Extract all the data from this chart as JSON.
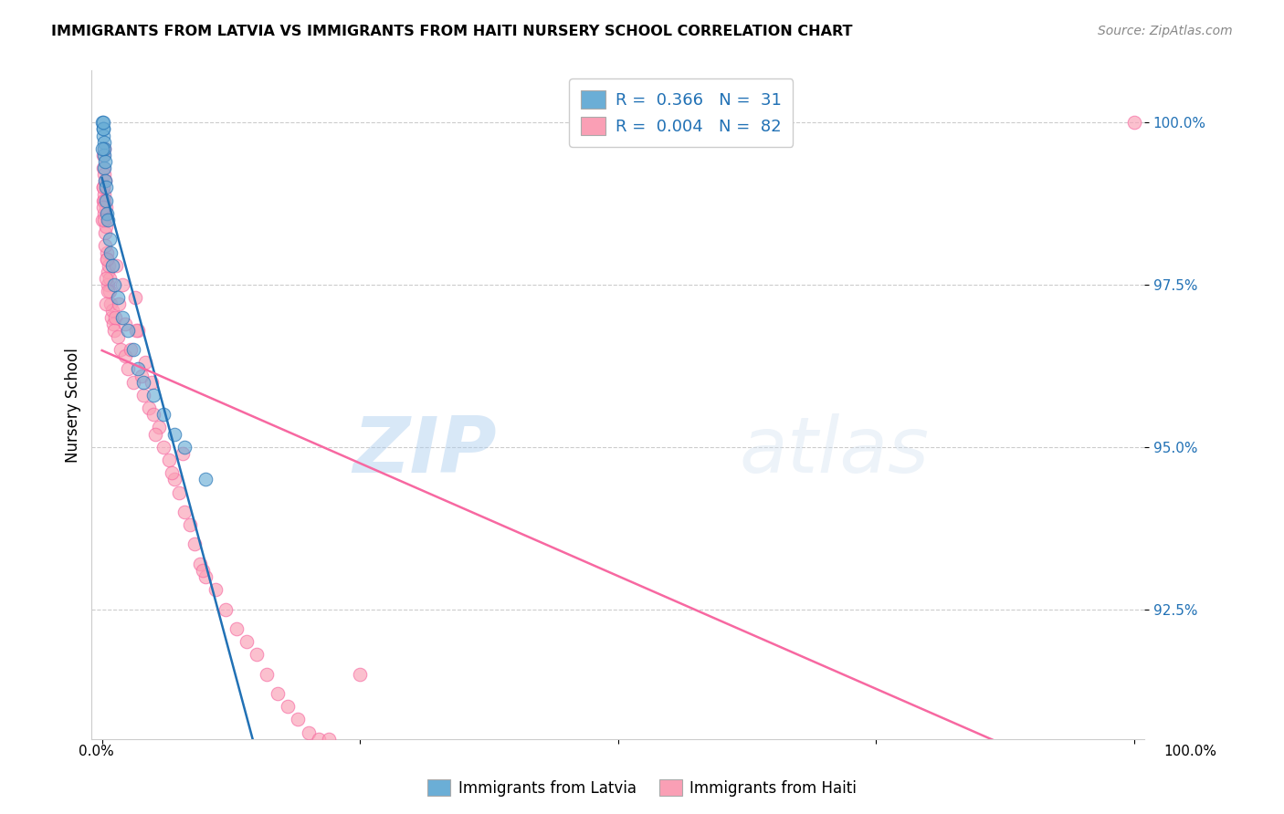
{
  "title": "IMMIGRANTS FROM LATVIA VS IMMIGRANTS FROM HAITI NURSERY SCHOOL CORRELATION CHART",
  "source": "Source: ZipAtlas.com",
  "ylabel": "Nursery School",
  "legend_label1": "Immigrants from Latvia",
  "legend_label2": "Immigrants from Haiti",
  "color_latvia": "#6baed6",
  "color_haiti": "#fa9fb5",
  "color_latvia_line": "#2171b5",
  "color_haiti_line": "#f768a1",
  "ylim_min": 90.5,
  "ylim_max": 100.8,
  "xlim_min": -1.0,
  "xlim_max": 101.0,
  "yticks": [
    92.5,
    95.0,
    97.5,
    100.0
  ],
  "ytick_labels": [
    "92.5%",
    "95.0%",
    "97.5%",
    "100.0%"
  ],
  "watermark_zip": "ZIP",
  "watermark_atlas": "atlas",
  "latvia_x": [
    0.05,
    0.08,
    0.1,
    0.12,
    0.15,
    0.18,
    0.2,
    0.22,
    0.25,
    0.28,
    0.32,
    0.38,
    0.42,
    0.5,
    0.6,
    0.7,
    0.8,
    1.0,
    1.2,
    1.5,
    2.0,
    2.5,
    3.0,
    3.5,
    4.0,
    5.0,
    6.0,
    7.0,
    8.0,
    10.0,
    0.05
  ],
  "latvia_y": [
    100.0,
    99.9,
    99.8,
    99.9,
    100.0,
    99.7,
    99.5,
    99.6,
    99.3,
    99.1,
    99.4,
    98.8,
    99.0,
    98.6,
    98.5,
    98.2,
    98.0,
    97.8,
    97.5,
    97.3,
    97.0,
    96.8,
    96.5,
    96.2,
    96.0,
    95.8,
    95.5,
    95.2,
    95.0,
    94.5,
    99.6
  ],
  "haiti_x": [
    0.05,
    0.08,
    0.1,
    0.12,
    0.15,
    0.18,
    0.2,
    0.22,
    0.25,
    0.28,
    0.32,
    0.35,
    0.4,
    0.45,
    0.5,
    0.55,
    0.6,
    0.65,
    0.7,
    0.75,
    0.8,
    0.9,
    1.0,
    1.1,
    1.2,
    1.3,
    1.5,
    1.6,
    1.8,
    2.0,
    2.2,
    2.5,
    2.8,
    3.0,
    3.2,
    3.5,
    3.8,
    4.0,
    4.2,
    4.5,
    4.8,
    5.0,
    5.5,
    6.0,
    6.5,
    7.0,
    7.5,
    8.0,
    8.5,
    9.0,
    9.5,
    10.0,
    11.0,
    12.0,
    13.0,
    14.0,
    15.0,
    16.0,
    17.0,
    18.0,
    19.0,
    20.0,
    21.0,
    22.0,
    6.8,
    3.3,
    5.2,
    7.8,
    9.8,
    0.38,
    1.4,
    2.2,
    0.48,
    0.55,
    0.3,
    0.42,
    0.22,
    0.18,
    0.13,
    0.1,
    25.0,
    100.0
  ],
  "haiti_y": [
    98.5,
    99.0,
    99.3,
    98.8,
    99.5,
    99.6,
    99.2,
    98.9,
    98.6,
    99.1,
    98.3,
    98.7,
    98.4,
    98.0,
    97.9,
    97.7,
    97.5,
    97.8,
    97.4,
    97.6,
    97.2,
    97.0,
    97.1,
    96.9,
    96.8,
    97.0,
    96.7,
    97.2,
    96.5,
    97.5,
    96.4,
    96.2,
    96.5,
    96.0,
    97.3,
    96.8,
    96.1,
    95.8,
    96.3,
    95.6,
    96.0,
    95.5,
    95.3,
    95.0,
    94.8,
    94.5,
    94.3,
    94.0,
    93.8,
    93.5,
    93.2,
    93.0,
    92.8,
    92.5,
    92.2,
    92.0,
    91.8,
    91.5,
    91.2,
    91.0,
    90.8,
    90.6,
    90.5,
    90.5,
    94.6,
    96.8,
    95.2,
    94.9,
    93.1,
    97.6,
    97.8,
    96.9,
    97.9,
    97.4,
    98.1,
    97.2,
    98.8,
    98.5,
    98.7,
    99.0,
    91.5,
    100.0
  ]
}
